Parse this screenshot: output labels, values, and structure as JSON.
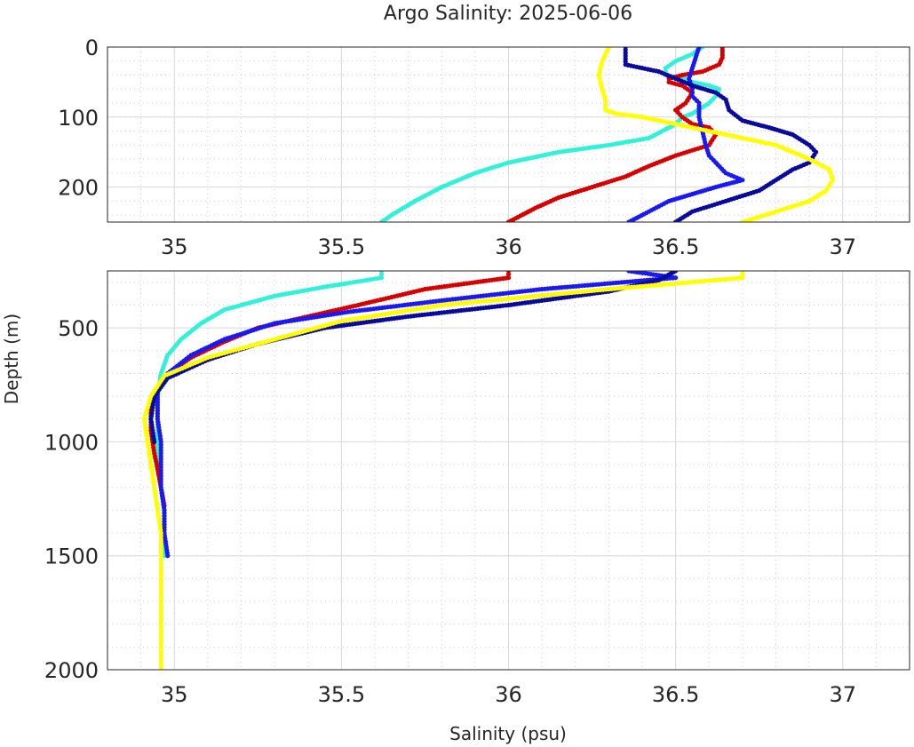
{
  "chart_data": {
    "type": "scatter",
    "title": "Argo Salinity: 2025-06-06",
    "xlabel": "Salinity (psu)",
    "ylabel": "Depth (m)",
    "panels": [
      {
        "name": "upper",
        "xlim": [
          34.8,
          37.2
        ],
        "ylim": [
          0,
          250
        ],
        "xticks": [
          35,
          35.5,
          36,
          36.5,
          37
        ],
        "xtick_labels": [
          "35",
          "35.5",
          "36",
          "36.5",
          "37"
        ],
        "yticks": [
          0,
          100,
          200
        ],
        "ytick_labels": [
          "0",
          "100",
          "200"
        ],
        "grid": true,
        "minor_grid": true
      },
      {
        "name": "lower",
        "xlim": [
          34.8,
          37.2
        ],
        "ylim": [
          250,
          2000
        ],
        "xticks": [
          35,
          35.5,
          36,
          36.5,
          37
        ],
        "xtick_labels": [
          "35",
          "35.5",
          "36",
          "36.5",
          "37"
        ],
        "yticks": [
          500,
          1000,
          1500,
          2000
        ],
        "ytick_labels": [
          "500",
          "1000",
          "1500",
          "2000"
        ],
        "grid": true,
        "minor_grid": true
      }
    ],
    "series": [
      {
        "name": "profile-cyan",
        "color": "#33f0d8",
        "points": [
          [
            36.58,
            0
          ],
          [
            36.55,
            10
          ],
          [
            36.5,
            20
          ],
          [
            36.47,
            30
          ],
          [
            36.47,
            40
          ],
          [
            36.52,
            45
          ],
          [
            36.55,
            50
          ],
          [
            36.6,
            55
          ],
          [
            36.63,
            60
          ],
          [
            36.62,
            70
          ],
          [
            36.6,
            80
          ],
          [
            36.55,
            95
          ],
          [
            36.52,
            100
          ],
          [
            36.5,
            110
          ],
          [
            36.42,
            130
          ],
          [
            36.3,
            140
          ],
          [
            36.15,
            150
          ],
          [
            36.0,
            165
          ],
          [
            35.9,
            180
          ],
          [
            35.8,
            200
          ],
          [
            35.72,
            220
          ],
          [
            35.65,
            240
          ],
          [
            35.62,
            250
          ],
          [
            35.62,
            280
          ],
          [
            35.45,
            320
          ],
          [
            35.3,
            360
          ],
          [
            35.15,
            420
          ],
          [
            35.08,
            480
          ],
          [
            35.02,
            550
          ],
          [
            34.98,
            620
          ],
          [
            34.96,
            700
          ],
          [
            34.95,
            800
          ],
          [
            34.95,
            900
          ],
          [
            34.95,
            1000
          ],
          [
            34.95,
            1100
          ],
          [
            34.96,
            1200
          ],
          [
            34.97,
            1300
          ],
          [
            34.97,
            1400
          ],
          [
            34.97,
            1500
          ]
        ]
      },
      {
        "name": "profile-red",
        "color": "#d40000",
        "points": [
          [
            36.64,
            0
          ],
          [
            36.64,
            15
          ],
          [
            36.63,
            25
          ],
          [
            36.58,
            35
          ],
          [
            36.52,
            40
          ],
          [
            36.48,
            45
          ],
          [
            36.48,
            50
          ],
          [
            36.52,
            55
          ],
          [
            36.55,
            65
          ],
          [
            36.53,
            80
          ],
          [
            36.5,
            90
          ],
          [
            36.52,
            100
          ],
          [
            36.55,
            110
          ],
          [
            36.6,
            115
          ],
          [
            36.62,
            125
          ],
          [
            36.6,
            140
          ],
          [
            36.5,
            155
          ],
          [
            36.42,
            170
          ],
          [
            36.35,
            185
          ],
          [
            36.25,
            200
          ],
          [
            36.15,
            215
          ],
          [
            36.08,
            230
          ],
          [
            36.0,
            250
          ],
          [
            36.0,
            280
          ],
          [
            35.75,
            330
          ],
          [
            35.55,
            400
          ],
          [
            35.4,
            450
          ],
          [
            35.25,
            500
          ],
          [
            35.15,
            560
          ],
          [
            35.05,
            630
          ],
          [
            34.98,
            700
          ],
          [
            34.94,
            780
          ],
          [
            34.93,
            850
          ],
          [
            34.93,
            950
          ],
          [
            34.94,
            1050
          ],
          [
            34.95,
            1120
          ],
          [
            34.96,
            1200
          ],
          [
            34.97,
            1280
          ]
        ]
      },
      {
        "name": "profile-blue",
        "color": "#1a1af0",
        "points": [
          [
            36.57,
            0
          ],
          [
            36.56,
            15
          ],
          [
            36.55,
            30
          ],
          [
            36.54,
            45
          ],
          [
            36.55,
            60
          ],
          [
            36.55,
            70
          ],
          [
            36.57,
            80
          ],
          [
            36.57,
            100
          ],
          [
            36.58,
            120
          ],
          [
            36.59,
            140
          ],
          [
            36.6,
            155
          ],
          [
            36.62,
            165
          ],
          [
            36.65,
            180
          ],
          [
            36.7,
            190
          ],
          [
            36.62,
            200
          ],
          [
            36.55,
            210
          ],
          [
            36.48,
            220
          ],
          [
            36.42,
            235
          ],
          [
            36.36,
            250
          ],
          [
            36.5,
            280
          ],
          [
            36.1,
            330
          ],
          [
            35.8,
            380
          ],
          [
            35.52,
            430
          ],
          [
            35.3,
            480
          ],
          [
            35.15,
            550
          ],
          [
            35.05,
            620
          ],
          [
            34.98,
            700
          ],
          [
            34.95,
            780
          ],
          [
            34.95,
            900
          ],
          [
            34.96,
            1000
          ],
          [
            34.96,
            1100
          ],
          [
            34.96,
            1200
          ],
          [
            34.97,
            1300
          ],
          [
            34.97,
            1400
          ],
          [
            34.98,
            1500
          ]
        ]
      },
      {
        "name": "profile-navy",
        "color": "#0a0a9a",
        "points": [
          [
            36.35,
            0
          ],
          [
            36.35,
            25
          ],
          [
            36.4,
            30
          ],
          [
            36.45,
            35
          ],
          [
            36.5,
            45
          ],
          [
            36.55,
            55
          ],
          [
            36.62,
            65
          ],
          [
            36.65,
            75
          ],
          [
            36.66,
            90
          ],
          [
            36.7,
            105
          ],
          [
            36.78,
            115
          ],
          [
            36.85,
            125
          ],
          [
            36.9,
            140
          ],
          [
            36.92,
            150
          ],
          [
            36.9,
            165
          ],
          [
            36.85,
            175
          ],
          [
            36.8,
            190
          ],
          [
            36.75,
            205
          ],
          [
            36.65,
            220
          ],
          [
            36.55,
            235
          ],
          [
            36.5,
            250
          ],
          [
            36.45,
            290
          ],
          [
            36.3,
            340
          ],
          [
            36.0,
            400
          ],
          [
            35.7,
            450
          ],
          [
            35.45,
            500
          ],
          [
            35.25,
            570
          ],
          [
            35.1,
            640
          ],
          [
            34.98,
            720
          ],
          [
            34.94,
            800
          ],
          [
            34.93,
            900
          ],
          [
            34.94,
            1000
          ]
        ]
      },
      {
        "name": "profile-yellow",
        "color": "#ffff00",
        "points": [
          [
            36.3,
            0
          ],
          [
            36.28,
            20
          ],
          [
            36.27,
            40
          ],
          [
            36.28,
            60
          ],
          [
            36.29,
            75
          ],
          [
            36.29,
            90
          ],
          [
            36.32,
            95
          ],
          [
            36.4,
            100
          ],
          [
            36.5,
            110
          ],
          [
            36.6,
            120
          ],
          [
            36.7,
            130
          ],
          [
            36.8,
            140
          ],
          [
            36.9,
            160
          ],
          [
            36.96,
            175
          ],
          [
            36.97,
            190
          ],
          [
            36.95,
            205
          ],
          [
            36.9,
            220
          ],
          [
            36.8,
            235
          ],
          [
            36.7,
            250
          ],
          [
            36.7,
            280
          ],
          [
            36.3,
            330
          ],
          [
            35.8,
            400
          ],
          [
            35.5,
            470
          ],
          [
            35.3,
            550
          ],
          [
            35.1,
            630
          ],
          [
            34.97,
            710
          ],
          [
            34.93,
            800
          ],
          [
            34.91,
            900
          ],
          [
            34.92,
            1000
          ],
          [
            34.93,
            1100
          ],
          [
            34.94,
            1200
          ],
          [
            34.95,
            1300
          ],
          [
            34.96,
            1400
          ],
          [
            34.96,
            1500
          ],
          [
            34.96,
            1600
          ],
          [
            34.96,
            1700
          ],
          [
            34.96,
            1800
          ],
          [
            34.96,
            1900
          ],
          [
            34.96,
            2000
          ]
        ]
      }
    ]
  }
}
